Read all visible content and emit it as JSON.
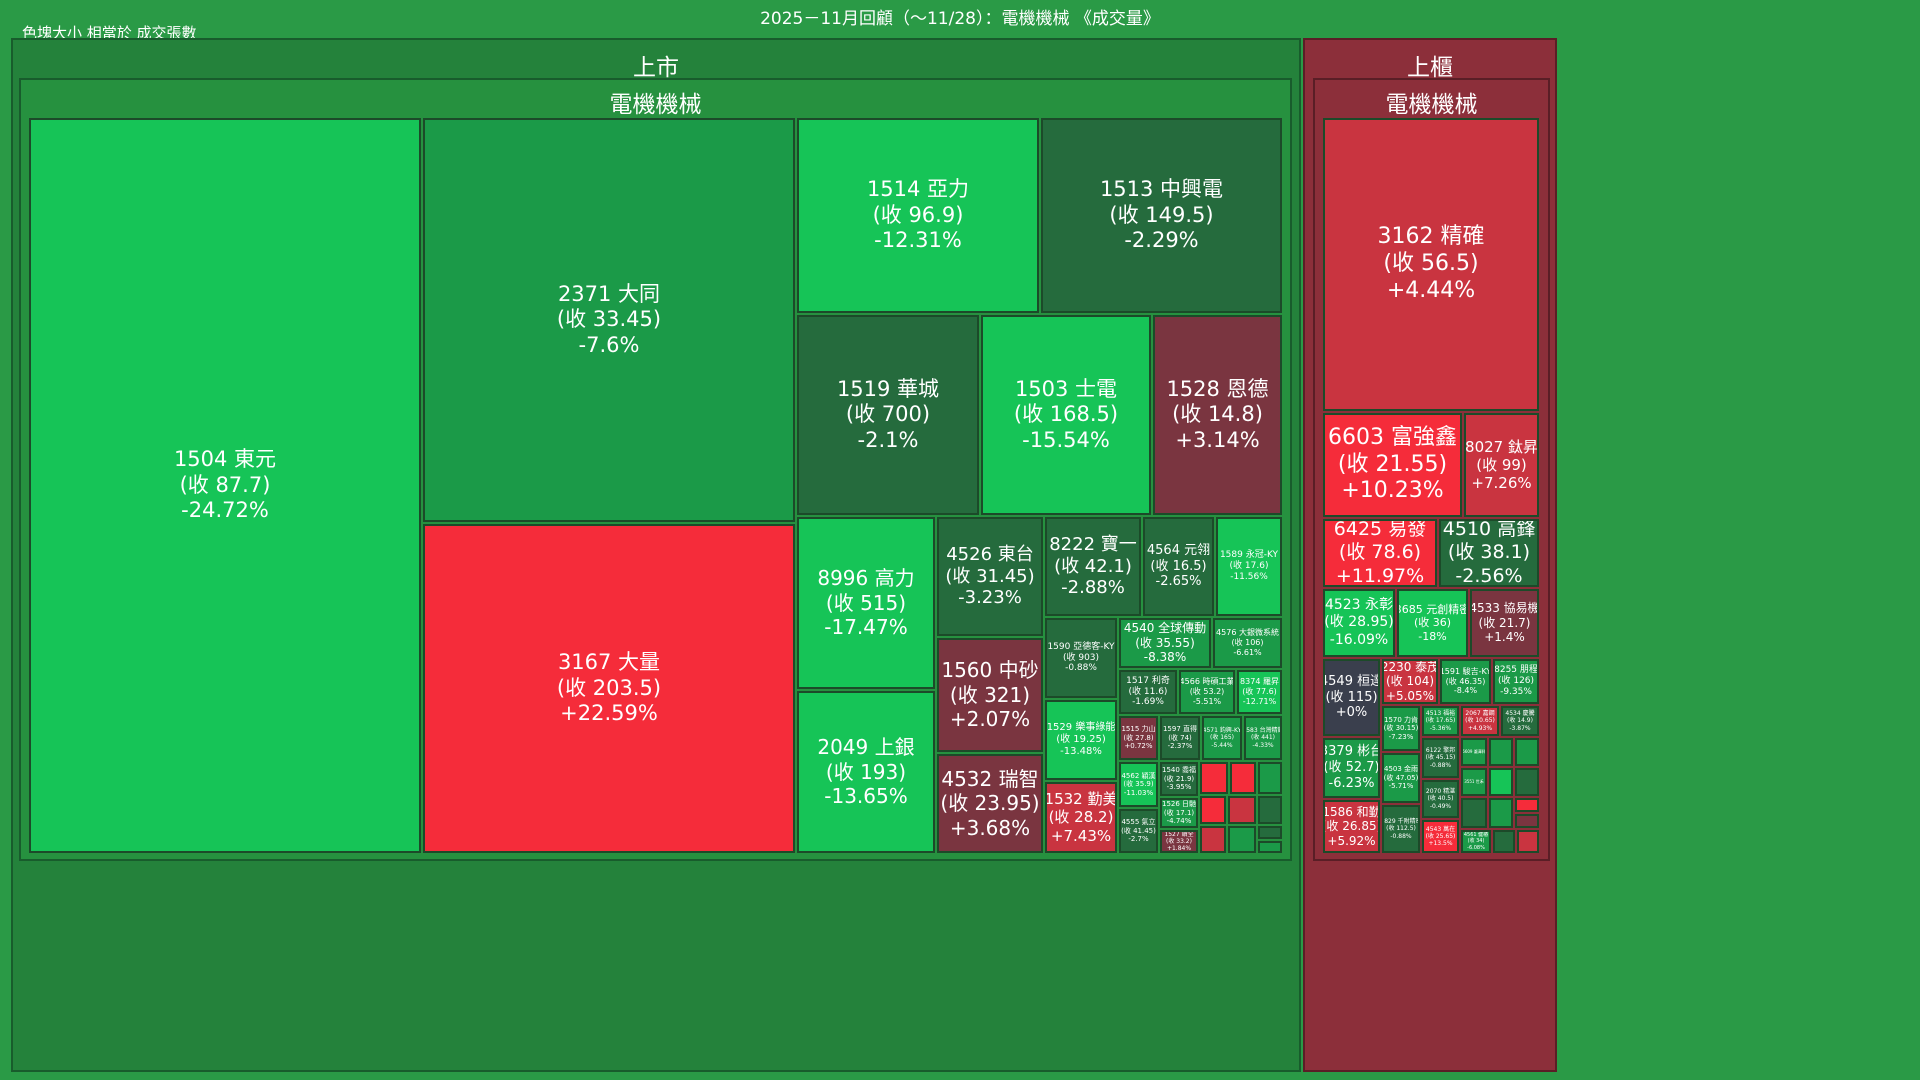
{
  "header": {
    "title": "2025－11月回顧（～11/28）：電機機械 《成交量》",
    "note": "色塊大小 相當於 成交張數"
  },
  "chart_data": {
    "type": "treemap",
    "size_metric": "成交張數",
    "markets": [
      {
        "name": "上市",
        "sector": "電機機械"
      },
      {
        "name": "上櫃",
        "sector": "電機機械"
      }
    ],
    "colors": {
      "up_strong": "#f52c3a",
      "up_mid": "#c93440",
      "up_weak": "#7a3540",
      "down_strong": "#16c457",
      "down_mid": "#1b9a48",
      "down_weak": "#256b3d",
      "flat": "#3a3f4d"
    },
    "tiles": [
      {
        "id": "1504",
        "name": "東元",
        "close": "87.7",
        "chg": "-24.72%"
      },
      {
        "id": "2371",
        "name": "大同",
        "close": "33.45",
        "chg": "-7.6%"
      },
      {
        "id": "3167",
        "name": "大量",
        "close": "203.5",
        "chg": "+22.59%"
      },
      {
        "id": "1514",
        "name": "亞力",
        "close": "96.9",
        "chg": "-12.31%"
      },
      {
        "id": "1513",
        "name": "中興電",
        "close": "149.5",
        "chg": "-2.29%"
      },
      {
        "id": "1519",
        "name": "華城",
        "close": "700",
        "chg": "-2.1%"
      },
      {
        "id": "1503",
        "name": "士電",
        "close": "168.5",
        "chg": "-15.54%"
      },
      {
        "id": "1528",
        "name": "恩德",
        "close": "14.8",
        "chg": "+3.14%"
      },
      {
        "id": "8996",
        "name": "高力",
        "close": "515",
        "chg": "-17.47%"
      },
      {
        "id": "2049",
        "name": "上銀",
        "close": "193",
        "chg": "-13.65%"
      },
      {
        "id": "4526",
        "name": "東台",
        "close": "31.45",
        "chg": "-3.23%"
      },
      {
        "id": "8222",
        "name": "寶一",
        "close": "42.1",
        "chg": "-2.88%"
      },
      {
        "id": "4564",
        "name": "元翎",
        "close": "16.5",
        "chg": "-2.65%"
      },
      {
        "id": "1589",
        "name": "永冠-KY",
        "close": "17.6",
        "chg": "-11.56%"
      },
      {
        "id": "1560",
        "name": "中砂",
        "close": "321",
        "chg": "+2.07%"
      },
      {
        "id": "4532",
        "name": "瑞智",
        "close": "23.95",
        "chg": "+3.68%"
      },
      {
        "id": "1532",
        "name": "勤美",
        "close": "28.2",
        "chg": "+7.43%"
      },
      {
        "id": "1590",
        "name": "亞德客-KY",
        "close": "903",
        "chg": "-0.88%"
      },
      {
        "id": "4540",
        "name": "全球傳動",
        "close": "35.55",
        "chg": "-8.38%"
      },
      {
        "id": "4576",
        "name": "大銀微系統",
        "close": "106",
        "chg": "-6.61%"
      },
      {
        "id": "1517",
        "name": "利奇",
        "close": "11.6",
        "chg": "-1.69%"
      },
      {
        "id": "4566",
        "name": "時碩工業",
        "close": "53.2",
        "chg": "-5.51%"
      },
      {
        "id": "8374",
        "name": "羅昇",
        "close": "77.6",
        "chg": "-12.71%"
      },
      {
        "id": "1529",
        "name": "樂事綠能",
        "close": "19.25",
        "chg": "-13.48%"
      },
      {
        "id": "1515",
        "name": "力山",
        "close": "27.8",
        "chg": "+0.72%"
      },
      {
        "id": "1597",
        "name": "直得",
        "close": "74",
        "chg": "-2.37%"
      },
      {
        "id": "4571",
        "name": "鈞興-KY",
        "close": "165",
        "chg": "-5.44%"
      },
      {
        "id": "4583",
        "name": "台灣精銳",
        "close": "441",
        "chg": "-4.33%"
      },
      {
        "id": "4562",
        "name": "穎漢",
        "close": "35.9",
        "chg": "-11.03%"
      },
      {
        "id": "1540",
        "name": "喬福",
        "close": "21.9",
        "chg": "-3.95%"
      },
      {
        "id": "1526",
        "name": "日馳",
        "close": "17.1",
        "chg": "-4.74%"
      },
      {
        "id": "4555",
        "name": "氣立",
        "close": "41.45",
        "chg": "-2.7%"
      },
      {
        "id": "1527",
        "name": "鑽全",
        "close": "33.2",
        "chg": "+1.84%"
      },
      {
        "id": "3162",
        "name": "精確",
        "close": "56.5",
        "chg": "+4.44%"
      },
      {
        "id": "6603",
        "name": "富強鑫",
        "close": "21.55",
        "chg": "+10.23%"
      },
      {
        "id": "8027",
        "name": "鈦昇",
        "close": "99",
        "chg": "+7.26%"
      },
      {
        "id": "6425",
        "name": "易發",
        "close": "78.6",
        "chg": "+11.97%"
      },
      {
        "id": "4510",
        "name": "高鋒",
        "close": "38.1",
        "chg": "-2.56%"
      },
      {
        "id": "4523",
        "name": "永彰",
        "close": "28.95",
        "chg": "-16.09%"
      },
      {
        "id": "3685",
        "name": "元創精密",
        "close": "36",
        "chg": "-18%"
      },
      {
        "id": "4533",
        "name": "協易機",
        "close": "21.7",
        "chg": "+1.4%"
      },
      {
        "id": "4549",
        "name": "桓達",
        "close": "115",
        "chg": "+0%"
      },
      {
        "id": "2230",
        "name": "泰茂",
        "close": "104",
        "chg": "+5.05%"
      },
      {
        "id": "1591",
        "name": "駿吉-KY",
        "close": "46.35",
        "chg": "-8.4%"
      },
      {
        "id": "8255",
        "name": "朋程",
        "close": "126",
        "chg": "-9.35%"
      },
      {
        "id": "1570",
        "name": "力肯",
        "close": "30.15",
        "chg": "-7.23%"
      },
      {
        "id": "4513",
        "name": "福裕",
        "close": "17.65",
        "chg": "-5.36%"
      },
      {
        "id": "2067",
        "name": "嘉鋼",
        "close": "10.65",
        "chg": "+4.93%"
      },
      {
        "id": "4534",
        "name": "慶騰",
        "close": "14.9",
        "chg": "-3.87%"
      },
      {
        "id": "3379",
        "name": "彬台",
        "close": "52.7",
        "chg": "-6.23%"
      },
      {
        "id": "4503",
        "name": "金雨",
        "close": "47.05",
        "chg": "-5.71%"
      },
      {
        "id": "6122",
        "name": "擎邦",
        "close": "45.15",
        "chg": "-0.88%"
      },
      {
        "id": "2070",
        "name": "精湛",
        "close": "40.5",
        "chg": "-0.49%"
      },
      {
        "id": "1586",
        "name": "和勤",
        "close": "26.85",
        "chg": "+5.92%"
      },
      {
        "id": "6609",
        "name": "瀧澤科",
        "close": "",
        "chg": ""
      },
      {
        "id": "3551",
        "name": "世禾",
        "close": "",
        "chg": ""
      },
      {
        "id": "6829",
        "name": "千附精密",
        "close": "112.5",
        "chg": "-0.88%"
      },
      {
        "id": "4543",
        "name": "萬在",
        "close": "25.65",
        "chg": "+13.5%"
      },
      {
        "id": "4561",
        "name": "健椿",
        "close": "34",
        "chg": "-6.08%"
      }
    ]
  }
}
